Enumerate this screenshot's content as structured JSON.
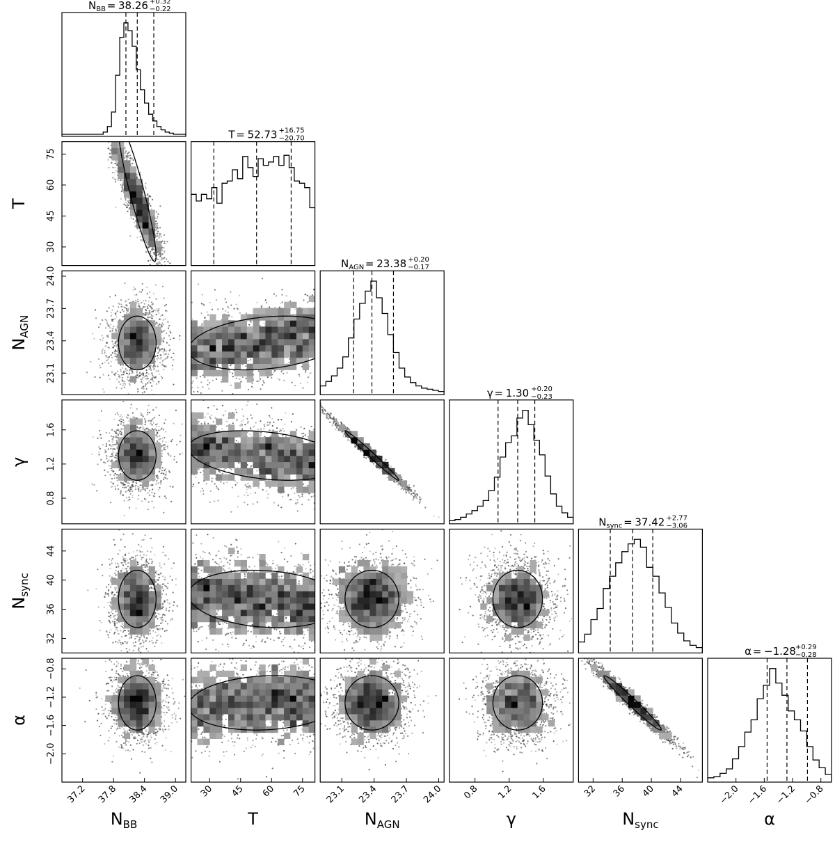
{
  "chart_data": {
    "type": "scatter",
    "subtype": "corner-plot",
    "parameters": [
      {
        "key": "NBB",
        "label": "N",
        "sub": "BB",
        "range": [
          36.8,
          39.2
        ],
        "ticks": [
          37.2,
          37.8,
          38.4,
          39.0
        ],
        "tick_labels": [
          "37.2",
          "37.8",
          "38.4",
          "39.0"
        ],
        "median": 38.26,
        "err_plus": 0.32,
        "err_minus": 0.22,
        "title_value": "38.26",
        "title_plus": "+0.32",
        "title_minus": "−0.22",
        "hist": [
          0,
          0,
          0,
          0,
          0,
          0,
          0,
          0,
          0,
          0,
          0.02,
          0.07,
          0.2,
          0.53,
          0.87,
          1.0,
          0.93,
          0.79,
          0.58,
          0.4,
          0.28,
          0.18,
          0.12,
          0.07,
          0.04,
          0.02,
          0.01,
          0,
          0,
          0
        ]
      },
      {
        "key": "T",
        "label": "T",
        "sub": "",
        "range": [
          21,
          81
        ],
        "ticks": [
          30,
          45,
          60,
          75
        ],
        "tick_labels": [
          "30",
          "45",
          "60",
          "75"
        ],
        "median": 52.73,
        "err_plus": 16.75,
        "err_minus": 20.7,
        "title_value": "52.73",
        "title_plus": "+16.75",
        "title_minus": "−20.70",
        "hist": [
          0.62,
          0.56,
          0.62,
          0.58,
          0.68,
          0.54,
          0.72,
          0.74,
          0.84,
          0.76,
          0.96,
          0.86,
          0.78,
          0.94,
          0.88,
          0.91,
          0.96,
          0.88,
          0.97,
          0.86,
          0.74,
          0.72,
          0.68,
          0.5
        ]
      },
      {
        "key": "NAGN",
        "label": "N",
        "sub": "AGN",
        "range": [
          22.9,
          24.05
        ],
        "ticks": [
          23.1,
          23.4,
          23.7,
          24.0
        ],
        "tick_labels": [
          "23.1",
          "23.4",
          "23.7",
          "24.0"
        ],
        "median": 23.38,
        "err_plus": 0.2,
        "err_minus": 0.17,
        "title_value": "23.38",
        "title_plus": "+0.20",
        "title_minus": "−0.17",
        "hist": [
          0.06,
          0.1,
          0.15,
          0.22,
          0.32,
          0.49,
          0.66,
          0.8,
          0.91,
          1.0,
          0.85,
          0.71,
          0.52,
          0.36,
          0.22,
          0.14,
          0.09,
          0.06,
          0.04,
          0.03,
          0.02,
          0.01
        ]
      },
      {
        "key": "gamma",
        "label": "γ",
        "sub": "",
        "range": [
          0.5,
          1.95
        ],
        "ticks": [
          0.8,
          1.2,
          1.6
        ],
        "tick_labels": [
          "0.8",
          "1.2",
          "1.6"
        ],
        "median": 1.3,
        "err_plus": 0.2,
        "err_minus": 0.23,
        "title_value": "1.30",
        "title_plus": "+0.20",
        "title_minus": "−0.23",
        "hist": [
          0.01,
          0.02,
          0.04,
          0.07,
          0.1,
          0.14,
          0.19,
          0.28,
          0.4,
          0.58,
          0.71,
          0.77,
          0.93,
          1.0,
          0.87,
          0.73,
          0.6,
          0.41,
          0.25,
          0.14,
          0.08,
          0.04
        ]
      },
      {
        "key": "Nsync",
        "label": "N",
        "sub": "sync",
        "range": [
          30,
          47
        ],
        "ticks": [
          32,
          36,
          40,
          44
        ],
        "tick_labels": [
          "32",
          "36",
          "40",
          "44"
        ],
        "median": 37.42,
        "err_plus": 2.77,
        "err_minus": 3.06,
        "title_value": "37.42",
        "title_plus": "+2.77",
        "title_minus": "−3.06",
        "hist": [
          0.08,
          0.15,
          0.28,
          0.38,
          0.56,
          0.67,
          0.79,
          0.89,
          0.96,
          1.0,
          0.93,
          0.75,
          0.67,
          0.52,
          0.39,
          0.25,
          0.16,
          0.09,
          0.05,
          0.03
        ]
      },
      {
        "key": "alpha",
        "label": "α",
        "sub": "",
        "range": [
          -2.4,
          -0.65
        ],
        "ticks": [
          -2.0,
          -1.6,
          -1.2,
          -0.8
        ],
        "tick_labels": [
          "−2.0",
          "−1.6",
          "−1.2",
          "−0.8"
        ],
        "median": -1.28,
        "err_plus": 0.29,
        "err_minus": 0.28,
        "title_value": "−1.28",
        "title_plus": "+0.29",
        "title_minus": "−0.28",
        "hist": [
          0.02,
          0.03,
          0.06,
          0.1,
          0.19,
          0.3,
          0.43,
          0.54,
          0.73,
          0.85,
          1.0,
          0.87,
          0.76,
          0.62,
          0.54,
          0.44,
          0.3,
          0.18,
          0.11,
          0.05
        ]
      }
    ],
    "panel_ticks": {
      "NBB": {
        "ticks": [
          37.2,
          37.8,
          38.4,
          39.0
        ],
        "tick_labels": [
          "37.2",
          "37.8",
          "38.4",
          "39.0"
        ]
      }
    },
    "correlations": {
      "T|NBB": -0.92,
      "NAGN|NBB": 0.0,
      "NAGN|T": 0.25,
      "gamma|NBB": 0.0,
      "gamma|T": -0.3,
      "gamma|NAGN": -0.99,
      "Nsync|NBB": 0.0,
      "Nsync|T": -0.15,
      "Nsync|NAGN": 0.0,
      "Nsync|gamma": 0.0,
      "alpha|NBB": 0.0,
      "alpha|T": 0.12,
      "alpha|NAGN": 0.0,
      "alpha|gamma": 0.0,
      "alpha|Nsync": -0.98
    },
    "grid": false,
    "legend": "none"
  }
}
